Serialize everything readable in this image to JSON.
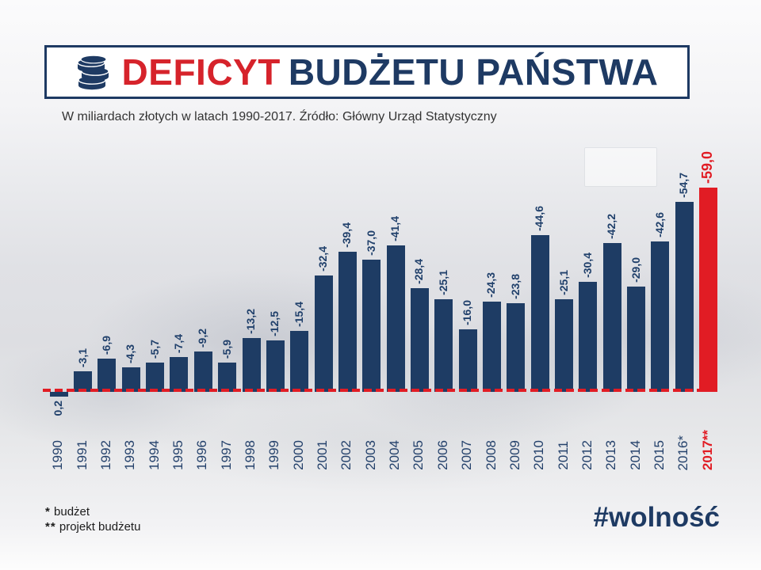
{
  "header": {
    "title": {
      "red": "DEFICYT",
      "navy": "BUDŻETU PAŃSTWA"
    },
    "subtitle": "W miliardach złotych w latach 1990-2017. Źródło: Główny Urząd Statystyczny"
  },
  "chart_data": {
    "type": "bar",
    "title": "Deficyt budżetu państwa",
    "unit": "mld zł",
    "xlabel": "rok",
    "ylabel": "miliardy złotych",
    "ylim": [
      -59.0,
      0.2
    ],
    "grid": false,
    "legend": "none",
    "baseline_value": 0,
    "categories": [
      "1990",
      "1991",
      "1992",
      "1993",
      "1994",
      "1995",
      "1996",
      "1997",
      "1998",
      "1999",
      "2000",
      "2001",
      "2002",
      "2003",
      "2004",
      "2005",
      "2006",
      "2007",
      "2008",
      "2009",
      "2010",
      "2011",
      "2012",
      "2013",
      "2014",
      "2015",
      "2016*",
      "2017**"
    ],
    "points": [
      {
        "year": "1990",
        "label": "0,2",
        "value": 0.2
      },
      {
        "year": "1991",
        "label": "-3,1",
        "value": -3.1
      },
      {
        "year": "1992",
        "label": "-6,9",
        "value": -6.9
      },
      {
        "year": "1993",
        "label": "-4,3",
        "value": -4.3
      },
      {
        "year": "1994",
        "label": "-5,7",
        "value": -5.7
      },
      {
        "year": "1995",
        "label": "-7,4",
        "value": -7.4
      },
      {
        "year": "1996",
        "label": "-9,2",
        "value": -9.2
      },
      {
        "year": "1997",
        "label": "-5,9",
        "value": -5.9
      },
      {
        "year": "1998",
        "label": "-13,2",
        "value": -13.2
      },
      {
        "year": "1999",
        "label": "-12,5",
        "value": -12.5
      },
      {
        "year": "2000",
        "label": "-15,4",
        "value": -15.4
      },
      {
        "year": "2001",
        "label": "-32,4",
        "value": -32.4
      },
      {
        "year": "2002",
        "label": "-39,4",
        "value": -39.4
      },
      {
        "year": "2003",
        "label": "-37,0",
        "value": -37.0
      },
      {
        "year": "2004",
        "label": "-41,4",
        "value": -41.4
      },
      {
        "year": "2005",
        "label": "-28,4",
        "value": -28.4
      },
      {
        "year": "2006",
        "label": "-25,1",
        "value": -25.1
      },
      {
        "year": "2007",
        "label": "-16,0",
        "value": -16.0
      },
      {
        "year": "2008",
        "label": "-24,3",
        "value": -24.3
      },
      {
        "year": "2009",
        "label": "-23,8",
        "value": -23.8
      },
      {
        "year": "2010",
        "label": "-44,6",
        "value": -44.6
      },
      {
        "year": "2011",
        "label": "-25,1",
        "value": -25.1
      },
      {
        "year": "2012",
        "label": "-30,4",
        "value": -30.4
      },
      {
        "year": "2013",
        "label": "-42,2",
        "value": -42.2
      },
      {
        "year": "2014",
        "label": "-29,0",
        "value": -29.0
      },
      {
        "year": "2015",
        "label": "-42,6",
        "value": -42.6
      },
      {
        "year": "2016*",
        "label": "-54,7",
        "value": -54.7
      },
      {
        "year": "2017**",
        "label": "-59,0",
        "value": -59.0,
        "highlight": true
      }
    ],
    "colors": {
      "bar": "#1e3c64",
      "highlight": "#e11c24",
      "baseline": "#e11c24",
      "value_label": "#20406b",
      "year_label": "#24416b",
      "highlight_label": "#e11c24"
    }
  },
  "footnotes": [
    {
      "symbol": "*",
      "text": "budżet"
    },
    {
      "symbol": "**",
      "text": "projekt budżetu"
    }
  ],
  "hashtag": "#wolność"
}
